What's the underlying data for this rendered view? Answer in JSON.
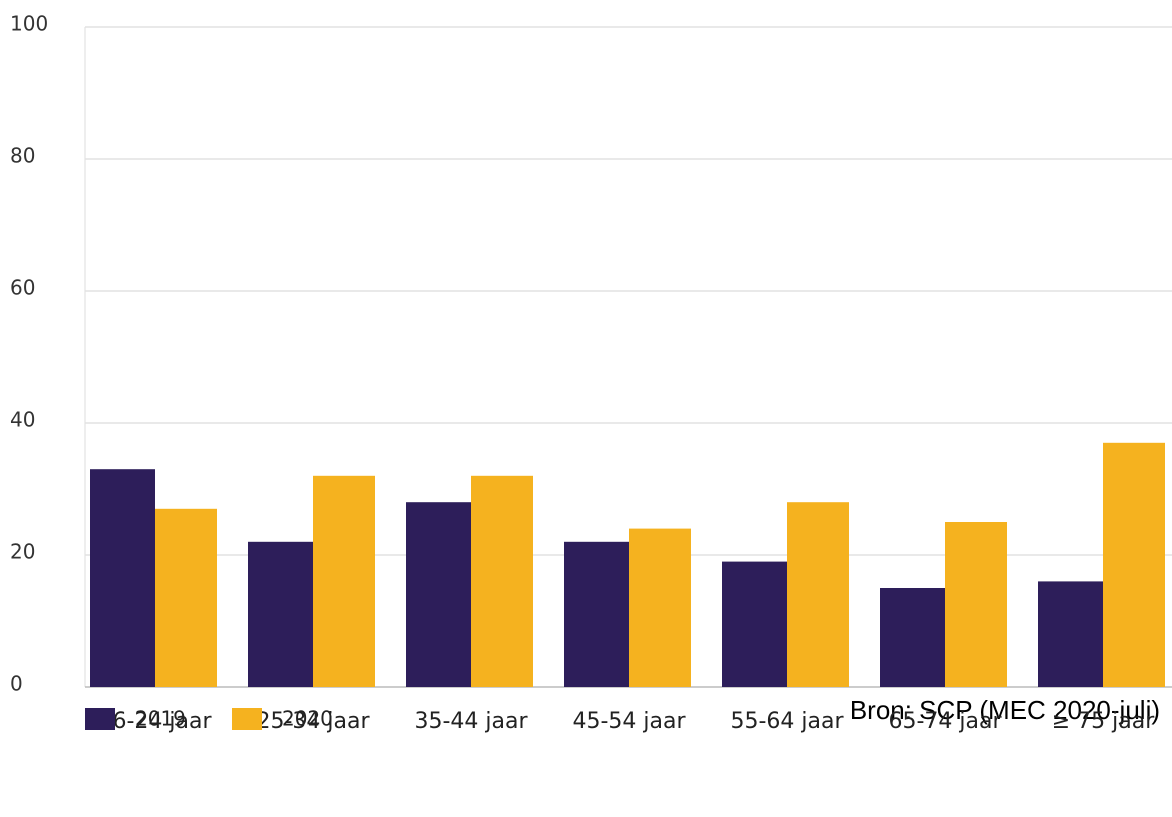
{
  "chart_data": {
    "type": "bar",
    "categories": [
      "16-24 jaar",
      "25-34 jaar",
      "35-44 jaar",
      "45-54 jaar",
      "55-64 jaar",
      "65-74 jaar",
      "≥ 75 jaar"
    ],
    "series": [
      {
        "name": "2019",
        "color": "#2d1e5a",
        "values": [
          33,
          22,
          28,
          22,
          19,
          15,
          16
        ]
      },
      {
        "name": "2020",
        "color": "#f5b21f",
        "values": [
          27,
          32,
          32,
          24,
          28,
          25,
          37
        ]
      }
    ],
    "ylim": [
      0,
      100
    ],
    "yticks": [
      0,
      20,
      40,
      60,
      80,
      100
    ],
    "grid": true,
    "source": "Bron: SCP (MEC 2020-juli)"
  }
}
